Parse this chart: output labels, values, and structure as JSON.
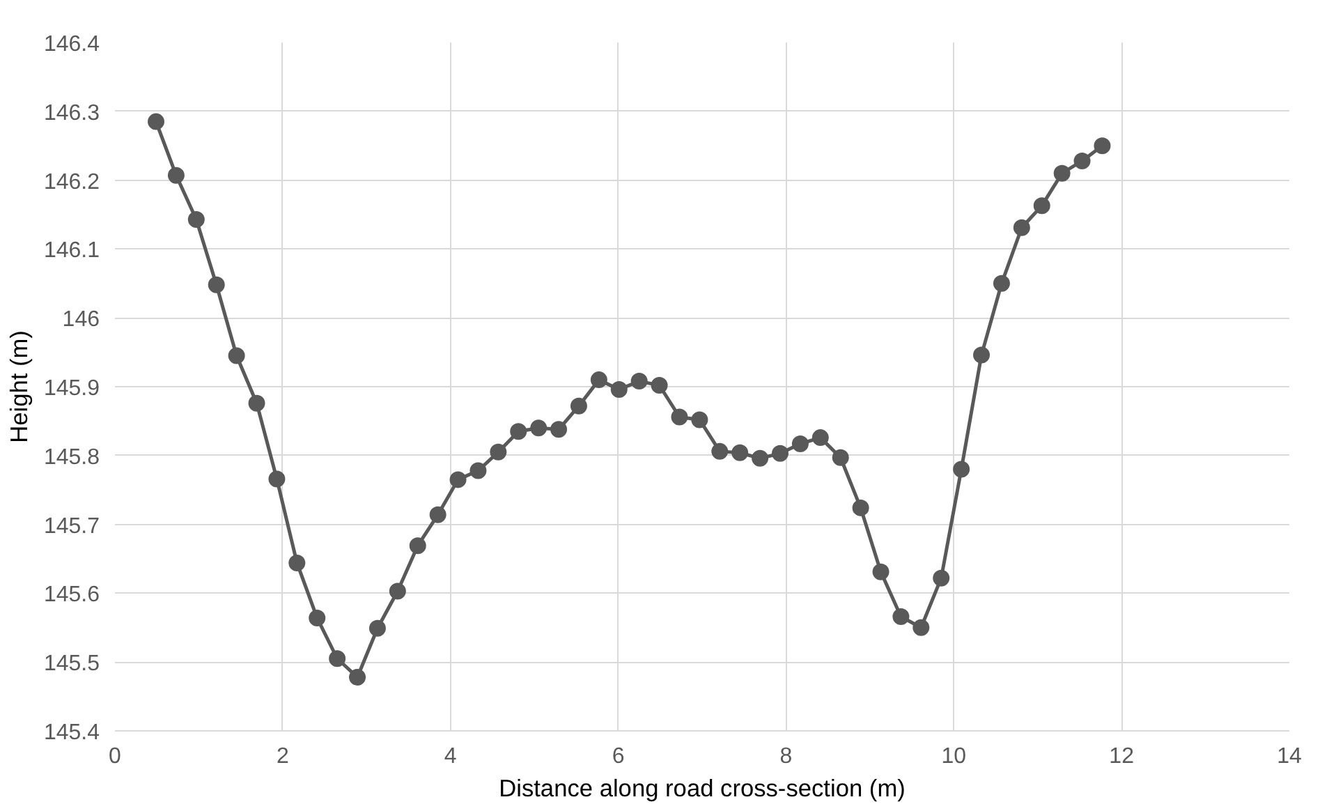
{
  "chart_data": {
    "type": "line",
    "xlabel": "Distance along road cross-section (m)",
    "ylabel": "Height (m)",
    "xlim": [
      0,
      14
    ],
    "xticks": [
      0,
      2,
      4,
      6,
      8,
      10,
      12,
      14
    ],
    "ylim": [
      145.4,
      146.4
    ],
    "yticks": [
      145.4,
      145.5,
      145.6,
      145.7,
      145.8,
      145.9,
      146,
      146.1,
      146.2,
      146.3,
      146.4
    ],
    "grid": true,
    "marker": "circle",
    "line_style": "solid",
    "series": [
      {
        "color": "#595959",
        "x": [
          0.49,
          0.73,
          0.97,
          1.21,
          1.45,
          1.69,
          1.93,
          2.17,
          2.41,
          2.65,
          2.89,
          3.13,
          3.37,
          3.61,
          3.85,
          4.09,
          4.33,
          4.57,
          4.81,
          5.05,
          5.29,
          5.53,
          5.77,
          6.01,
          6.25,
          6.49,
          6.73,
          6.97,
          7.21,
          7.45,
          7.69,
          7.93,
          8.17,
          8.41,
          8.65,
          8.89,
          9.13,
          9.37,
          9.61,
          9.85,
          10.09,
          10.33,
          10.57,
          10.81,
          11.05,
          11.29,
          11.53,
          11.77
        ],
        "values": [
          146.285,
          146.207,
          146.143,
          146.048,
          145.945,
          145.876,
          145.766,
          145.644,
          145.564,
          145.505,
          145.478,
          145.549,
          145.603,
          145.669,
          145.714,
          145.765,
          145.778,
          145.805,
          145.835,
          145.84,
          145.838,
          145.872,
          145.91,
          145.896,
          145.908,
          145.902,
          145.856,
          145.852,
          145.806,
          145.804,
          145.796,
          145.803,
          145.817,
          145.826,
          145.797,
          145.724,
          145.631,
          145.566,
          145.55,
          145.622,
          145.78,
          145.946,
          146.05,
          146.131,
          146.163,
          146.21,
          146.228,
          146.25
        ]
      }
    ]
  }
}
